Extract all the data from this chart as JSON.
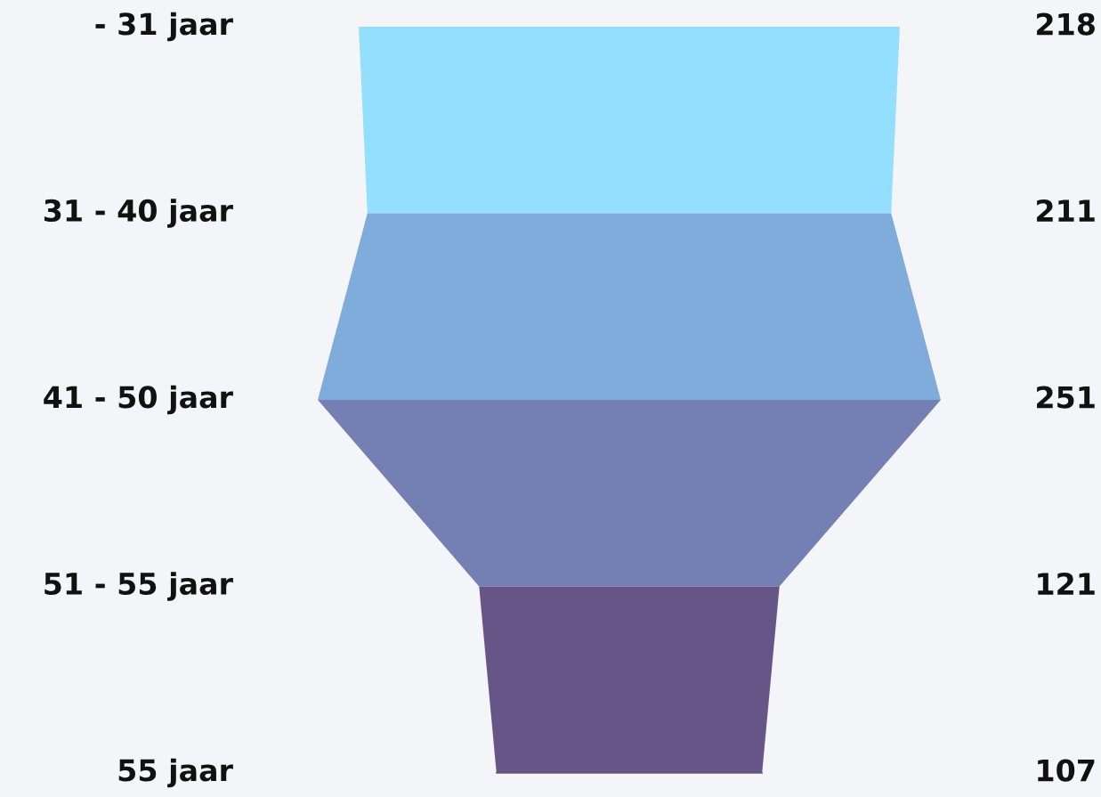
{
  "chart_data": {
    "type": "other",
    "categories": [
      "- 31 jaar",
      "31 - 40 jaar",
      "41 - 50 jaar",
      "51 - 55 jaar",
      "55 jaar"
    ],
    "values": [
      218,
      211,
      251,
      121,
      107
    ],
    "colors": [
      "#95dffe",
      "#80acdc",
      "#7480b3",
      "#675587",
      "#675587"
    ],
    "data_labels": true
  }
}
